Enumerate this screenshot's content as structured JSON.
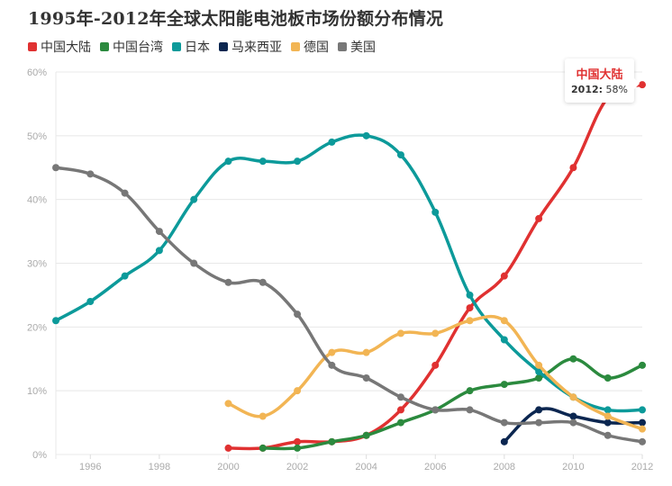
{
  "chart_data": {
    "type": "line",
    "title": "1995年-2012年全球太阳能电池板市场份额分布情况",
    "xlabel": "",
    "ylabel": "",
    "x": [
      1995,
      1996,
      1997,
      1998,
      1999,
      2000,
      2001,
      2002,
      2003,
      2004,
      2005,
      2006,
      2007,
      2008,
      2009,
      2010,
      2011,
      2012
    ],
    "xticks": [
      "1996",
      "1998",
      "2000",
      "2002",
      "2004",
      "2006",
      "2008",
      "2010",
      "2012"
    ],
    "yticks": [
      "0%",
      "10%",
      "20%",
      "30%",
      "40%",
      "50%",
      "60%"
    ],
    "ylim": [
      0,
      60
    ],
    "grid": true,
    "legend_position": "top-left",
    "series": [
      {
        "name": "中国大陆",
        "color": "#e03131",
        "values": [
          null,
          null,
          null,
          null,
          null,
          1,
          1,
          2,
          2,
          3,
          7,
          14,
          23,
          28,
          37,
          45,
          56,
          58
        ]
      },
      {
        "name": "中国台湾",
        "color": "#2b8a3e",
        "values": [
          null,
          null,
          null,
          null,
          null,
          null,
          1,
          1,
          2,
          3,
          5,
          7,
          10,
          11,
          12,
          15,
          12,
          14
        ]
      },
      {
        "name": "日本",
        "color": "#0c9a9a",
        "values": [
          21,
          24,
          28,
          32,
          40,
          46,
          46,
          46,
          49,
          50,
          47,
          38,
          25,
          18,
          13,
          9,
          7,
          7
        ]
      },
      {
        "name": "马来西亚",
        "color": "#0b2650",
        "values": [
          null,
          null,
          null,
          null,
          null,
          null,
          null,
          null,
          null,
          null,
          null,
          null,
          null,
          2,
          7,
          6,
          5,
          5
        ]
      },
      {
        "name": "德国",
        "color": "#f2b554",
        "values": [
          null,
          null,
          null,
          null,
          null,
          8,
          6,
          10,
          16,
          16,
          19,
          19,
          21,
          21,
          14,
          9,
          6,
          4
        ]
      },
      {
        "name": "美国",
        "color": "#777777",
        "values": [
          45,
          44,
          41,
          35,
          30,
          27,
          27,
          22,
          14,
          12,
          9,
          7,
          7,
          5,
          5,
          5,
          3,
          2
        ]
      }
    ],
    "tooltip": {
      "series": "中国大陆",
      "year": "2012:",
      "value": "58%"
    }
  },
  "header": {
    "title": "1995年-2012年全球太阳能电池板市场份额分布情况"
  },
  "legend": {
    "items": [
      {
        "label": "中国大陆",
        "color": "#e03131"
      },
      {
        "label": "中国台湾",
        "color": "#2b8a3e"
      },
      {
        "label": "日本",
        "color": "#0c9a9a"
      },
      {
        "label": "马来西亚",
        "color": "#0b2650"
      },
      {
        "label": "德国",
        "color": "#f2b554"
      },
      {
        "label": "美国",
        "color": "#777777"
      }
    ]
  },
  "tooltip": {
    "series": "中国大陆",
    "year": "2012:",
    "value": "58%",
    "color": "#e03131"
  }
}
